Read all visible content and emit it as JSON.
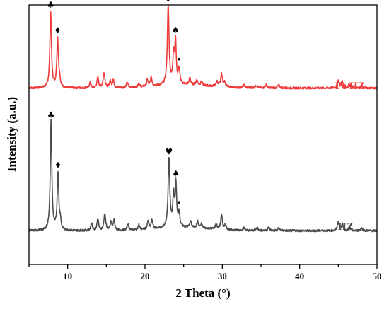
{
  "chart_data": {
    "type": "line",
    "xlabel": "2 Theta (°)",
    "ylabel": "Intensity (a.u.)",
    "xlim": [
      5,
      50
    ],
    "ylim": [
      0,
      100
    ],
    "xticks": [
      10,
      20,
      30,
      40,
      50
    ],
    "y_tick_labels": false,
    "grid": false,
    "legend": "none",
    "series": [
      {
        "name": "Fe/HZ",
        "color": "#ee3b3b",
        "baseline": 68,
        "peaks": [
          {
            "x": 7.8,
            "h": 29.5,
            "w": 0.12
          },
          {
            "x": 8.7,
            "h": 19,
            "w": 0.12
          },
          {
            "x": 8.95,
            "h": 3,
            "w": 0.1
          },
          {
            "x": 12.9,
            "h": 2,
            "w": 0.12
          },
          {
            "x": 13.9,
            "h": 4,
            "w": 0.12
          },
          {
            "x": 14.7,
            "h": 6,
            "w": 0.13
          },
          {
            "x": 15.5,
            "h": 2.5,
            "w": 0.12
          },
          {
            "x": 15.9,
            "h": 3,
            "w": 0.12
          },
          {
            "x": 17.7,
            "h": 2,
            "w": 0.12
          },
          {
            "x": 19.2,
            "h": 1.5,
            "w": 0.12
          },
          {
            "x": 20.3,
            "h": 2.5,
            "w": 0.12
          },
          {
            "x": 20.8,
            "h": 3.5,
            "w": 0.12
          },
          {
            "x": 23.0,
            "h": 30.5,
            "w": 0.13
          },
          {
            "x": 23.7,
            "h": 11,
            "w": 0.12
          },
          {
            "x": 23.95,
            "h": 16,
            "w": 0.11
          },
          {
            "x": 24.4,
            "h": 6,
            "w": 0.12
          },
          {
            "x": 25.8,
            "h": 2.5,
            "w": 0.12
          },
          {
            "x": 26.7,
            "h": 2,
            "w": 0.12
          },
          {
            "x": 27.3,
            "h": 1.5,
            "w": 0.12
          },
          {
            "x": 29.3,
            "h": 2,
            "w": 0.12
          },
          {
            "x": 29.9,
            "h": 5,
            "w": 0.13
          },
          {
            "x": 30.3,
            "h": 2,
            "w": 0.12
          },
          {
            "x": 32.8,
            "h": 1,
            "w": 0.15
          },
          {
            "x": 34.4,
            "h": 1,
            "w": 0.15
          },
          {
            "x": 35.7,
            "h": 1.2,
            "w": 0.15
          },
          {
            "x": 37.3,
            "h": 1,
            "w": 0.15
          },
          {
            "x": 45.0,
            "h": 3,
            "w": 0.13
          },
          {
            "x": 45.5,
            "h": 2.5,
            "w": 0.13
          },
          {
            "x": 46.5,
            "h": 1,
            "w": 0.15
          },
          {
            "x": 48.0,
            "h": 0.8,
            "w": 0.15
          }
        ]
      },
      {
        "name": "HZ",
        "color": "#4d4d4d",
        "baseline": 13,
        "peaks": [
          {
            "x": 7.85,
            "h": 42,
            "w": 0.12
          },
          {
            "x": 8.75,
            "h": 22,
            "w": 0.12
          },
          {
            "x": 9.05,
            "h": 3.5,
            "w": 0.1
          },
          {
            "x": 13.1,
            "h": 3,
            "w": 0.12
          },
          {
            "x": 13.9,
            "h": 4.5,
            "w": 0.12
          },
          {
            "x": 14.8,
            "h": 6.5,
            "w": 0.13
          },
          {
            "x": 15.6,
            "h": 3,
            "w": 0.12
          },
          {
            "x": 16.0,
            "h": 4,
            "w": 0.12
          },
          {
            "x": 17.8,
            "h": 2.5,
            "w": 0.12
          },
          {
            "x": 19.2,
            "h": 2,
            "w": 0.12
          },
          {
            "x": 20.4,
            "h": 3,
            "w": 0.12
          },
          {
            "x": 20.9,
            "h": 3.5,
            "w": 0.12
          },
          {
            "x": 23.1,
            "h": 26.5,
            "w": 0.13
          },
          {
            "x": 23.7,
            "h": 12,
            "w": 0.12
          },
          {
            "x": 24.0,
            "h": 16,
            "w": 0.11
          },
          {
            "x": 24.4,
            "h": 5.5,
            "w": 0.12
          },
          {
            "x": 25.9,
            "h": 2.5,
            "w": 0.12
          },
          {
            "x": 26.8,
            "h": 2.5,
            "w": 0.12
          },
          {
            "x": 27.3,
            "h": 1.5,
            "w": 0.12
          },
          {
            "x": 29.2,
            "h": 2,
            "w": 0.12
          },
          {
            "x": 29.9,
            "h": 5.5,
            "w": 0.13
          },
          {
            "x": 30.4,
            "h": 2,
            "w": 0.12
          },
          {
            "x": 32.8,
            "h": 1,
            "w": 0.15
          },
          {
            "x": 34.5,
            "h": 1.2,
            "w": 0.15
          },
          {
            "x": 36.0,
            "h": 1.2,
            "w": 0.15
          },
          {
            "x": 37.3,
            "h": 1,
            "w": 0.15
          },
          {
            "x": 45.0,
            "h": 3.5,
            "w": 0.13
          },
          {
            "x": 45.5,
            "h": 2.5,
            "w": 0.13
          },
          {
            "x": 46.5,
            "h": 1,
            "w": 0.15
          },
          {
            "x": 48.0,
            "h": 1,
            "w": 0.15
          }
        ]
      }
    ],
    "annotations": [
      {
        "series": 0,
        "symbol": "♣",
        "x": 7.8
      },
      {
        "series": 0,
        "symbol": "♦",
        "x": 8.7
      },
      {
        "series": 0,
        "symbol": "♥",
        "x": 23.0
      },
      {
        "series": 0,
        "symbol": "♠",
        "x": 23.95
      },
      {
        "series": 0,
        "symbol": "•",
        "x": 24.4
      },
      {
        "series": 1,
        "symbol": "♣",
        "x": 7.85
      },
      {
        "series": 1,
        "symbol": "♦",
        "x": 8.75
      },
      {
        "series": 1,
        "symbol": "♥",
        "x": 23.1
      },
      {
        "series": 1,
        "symbol": "♠",
        "x": 24.0
      },
      {
        "series": 1,
        "symbol": "•",
        "x": 24.4
      }
    ]
  }
}
